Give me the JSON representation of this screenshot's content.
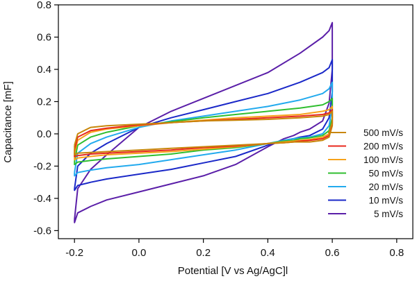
{
  "chart_data": {
    "type": "line",
    "title": "",
    "xlabel": "Potential [V vs Ag/AgC]l",
    "ylabel": "Capacitance [mF]",
    "xlim": [
      -0.25,
      0.85
    ],
    "ylim": [
      -0.65,
      0.8
    ],
    "xticks": [
      -0.2,
      0.0,
      0.2,
      0.4,
      0.6,
      0.8
    ],
    "xtick_labels": [
      "-0.2",
      "0.0",
      "0.2",
      "0.4",
      "0.6",
      "0.8"
    ],
    "yticks": [
      -0.6,
      -0.4,
      -0.2,
      0.0,
      0.2,
      0.4,
      0.6,
      0.8
    ],
    "ytick_labels": [
      "-0.6",
      "-0.4",
      "-0.2",
      "0.0",
      "0.2",
      "0.4",
      "0.6",
      "0.8"
    ],
    "grid": false,
    "legend_position": "bottom-right",
    "series": [
      {
        "name": "500 mV/s",
        "color": "#c8860a",
        "x": [
          -0.2,
          -0.19,
          -0.15,
          -0.1,
          0.0,
          0.1,
          0.2,
          0.3,
          0.4,
          0.5,
          0.57,
          0.59,
          0.6,
          0.6,
          0.59,
          0.57,
          0.53,
          0.5,
          0.48,
          0.45,
          0.4,
          0.3,
          0.2,
          0.1,
          0.0,
          -0.1,
          -0.15,
          -0.19,
          -0.2,
          -0.2
        ],
        "y": [
          -0.07,
          0.0,
          0.04,
          0.05,
          0.06,
          0.07,
          0.08,
          0.085,
          0.09,
          0.1,
          0.11,
          0.12,
          0.14,
          0.05,
          -0.02,
          -0.04,
          -0.05,
          -0.05,
          -0.05,
          -0.055,
          -0.06,
          -0.07,
          -0.08,
          -0.09,
          -0.1,
          -0.11,
          -0.115,
          -0.12,
          -0.13,
          -0.07
        ]
      },
      {
        "name": "200 mV/s",
        "color": "#e8281e",
        "x": [
          -0.2,
          -0.19,
          -0.15,
          -0.1,
          0.0,
          0.1,
          0.2,
          0.3,
          0.4,
          0.5,
          0.57,
          0.59,
          0.6,
          0.6,
          0.59,
          0.57,
          0.53,
          0.5,
          0.48,
          0.45,
          0.4,
          0.3,
          0.2,
          0.1,
          0.0,
          -0.1,
          -0.15,
          -0.19,
          -0.2,
          -0.2
        ],
        "y": [
          -0.1,
          -0.02,
          0.02,
          0.035,
          0.055,
          0.07,
          0.08,
          0.09,
          0.1,
          0.11,
          0.12,
          0.13,
          0.15,
          0.06,
          -0.01,
          -0.03,
          -0.04,
          -0.045,
          -0.05,
          -0.055,
          -0.06,
          -0.075,
          -0.085,
          -0.1,
          -0.11,
          -0.12,
          -0.125,
          -0.135,
          -0.14,
          -0.1
        ]
      },
      {
        "name": "100 mV/s",
        "color": "#f6a21a",
        "x": [
          -0.2,
          -0.19,
          -0.15,
          -0.1,
          0.0,
          0.1,
          0.2,
          0.3,
          0.4,
          0.5,
          0.57,
          0.59,
          0.6,
          0.6,
          0.59,
          0.57,
          0.53,
          0.5,
          0.48,
          0.45,
          0.4,
          0.3,
          0.2,
          0.1,
          0.0,
          -0.1,
          -0.15,
          -0.19,
          -0.2,
          -0.2
        ],
        "y": [
          -0.12,
          -0.04,
          0.01,
          0.03,
          0.05,
          0.07,
          0.085,
          0.1,
          0.11,
          0.12,
          0.14,
          0.15,
          0.17,
          0.07,
          0.0,
          -0.02,
          -0.035,
          -0.04,
          -0.045,
          -0.05,
          -0.06,
          -0.08,
          -0.095,
          -0.11,
          -0.12,
          -0.13,
          -0.14,
          -0.15,
          -0.16,
          -0.12
        ]
      },
      {
        "name": "50 mV/s",
        "color": "#2fbe2f",
        "x": [
          -0.2,
          -0.19,
          -0.15,
          -0.1,
          0.0,
          0.1,
          0.2,
          0.3,
          0.4,
          0.5,
          0.57,
          0.59,
          0.6,
          0.6,
          0.59,
          0.57,
          0.53,
          0.5,
          0.48,
          0.45,
          0.4,
          0.3,
          0.2,
          0.1,
          0.0,
          -0.1,
          -0.15,
          -0.19,
          -0.2,
          -0.2
        ],
        "y": [
          -0.17,
          -0.07,
          -0.02,
          0.01,
          0.05,
          0.075,
          0.1,
          0.12,
          0.14,
          0.16,
          0.18,
          0.2,
          0.22,
          0.1,
          0.02,
          -0.01,
          -0.025,
          -0.03,
          -0.04,
          -0.045,
          -0.06,
          -0.085,
          -0.1,
          -0.125,
          -0.14,
          -0.155,
          -0.165,
          -0.175,
          -0.19,
          -0.17
        ]
      },
      {
        "name": "20 mV/s",
        "color": "#22aaee",
        "x": [
          -0.2,
          -0.19,
          -0.15,
          -0.1,
          0.0,
          0.1,
          0.2,
          0.3,
          0.4,
          0.5,
          0.57,
          0.59,
          0.6,
          0.6,
          0.59,
          0.57,
          0.53,
          0.5,
          0.48,
          0.45,
          0.4,
          0.3,
          0.2,
          0.1,
          0.0,
          -0.1,
          -0.15,
          -0.19,
          -0.2,
          -0.2
        ],
        "y": [
          -0.24,
          -0.12,
          -0.06,
          -0.02,
          0.04,
          0.08,
          0.11,
          0.14,
          0.17,
          0.21,
          0.25,
          0.28,
          0.32,
          0.17,
          0.05,
          0.0,
          -0.02,
          -0.025,
          -0.03,
          -0.04,
          -0.06,
          -0.1,
          -0.13,
          -0.16,
          -0.19,
          -0.21,
          -0.225,
          -0.24,
          -0.26,
          -0.24
        ]
      },
      {
        "name": "10 mV/s",
        "color": "#1a28c8",
        "x": [
          -0.2,
          -0.19,
          -0.15,
          -0.1,
          0.0,
          0.1,
          0.2,
          0.3,
          0.4,
          0.5,
          0.57,
          0.59,
          0.6,
          0.6,
          0.59,
          0.57,
          0.53,
          0.5,
          0.48,
          0.45,
          0.4,
          0.3,
          0.2,
          0.1,
          0.0,
          -0.1,
          -0.15,
          -0.19,
          -0.2,
          -0.2
        ],
        "y": [
          -0.34,
          -0.2,
          -0.12,
          -0.06,
          0.04,
          0.1,
          0.15,
          0.2,
          0.25,
          0.32,
          0.38,
          0.41,
          0.46,
          0.26,
          0.1,
          0.03,
          -0.01,
          -0.02,
          -0.03,
          -0.04,
          -0.07,
          -0.14,
          -0.18,
          -0.22,
          -0.25,
          -0.28,
          -0.3,
          -0.32,
          -0.35,
          -0.34
        ]
      },
      {
        "name": "5 mV/s",
        "color": "#5a1ea8",
        "x": [
          -0.2,
          -0.19,
          -0.15,
          -0.1,
          0.0,
          0.1,
          0.2,
          0.3,
          0.4,
          0.5,
          0.57,
          0.59,
          0.6,
          0.6,
          0.59,
          0.57,
          0.53,
          0.5,
          0.48,
          0.45,
          0.4,
          0.3,
          0.2,
          0.1,
          0.0,
          -0.1,
          -0.15,
          -0.19,
          -0.2,
          -0.2
        ],
        "y": [
          -0.53,
          -0.34,
          -0.22,
          -0.13,
          0.04,
          0.14,
          0.22,
          0.3,
          0.38,
          0.5,
          0.6,
          0.64,
          0.69,
          0.4,
          0.19,
          0.08,
          0.03,
          0.01,
          -0.01,
          -0.03,
          -0.08,
          -0.19,
          -0.26,
          -0.31,
          -0.36,
          -0.41,
          -0.45,
          -0.49,
          -0.55,
          -0.53
        ]
      }
    ]
  }
}
